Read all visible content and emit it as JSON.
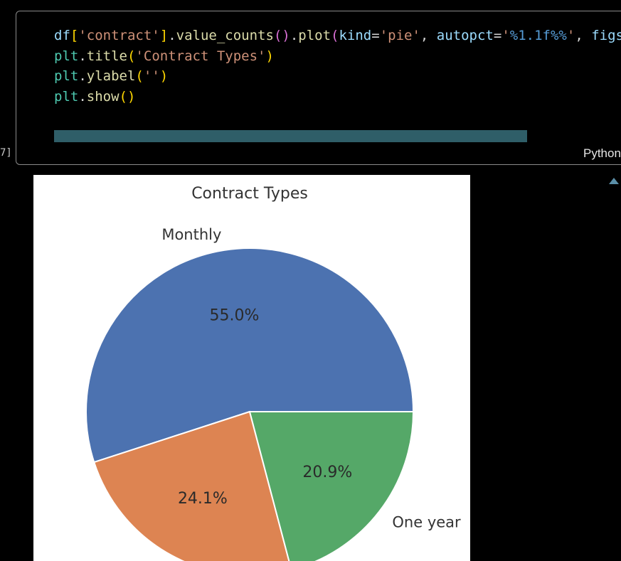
{
  "cell": {
    "code_lines": [
      [
        [
          "tok-var",
          "df"
        ],
        [
          "tok-br",
          "["
        ],
        [
          "tok-str",
          "'contract'"
        ],
        [
          "tok-br",
          "]"
        ],
        [
          "",
          "."
        ],
        [
          "tok-fn",
          "value_counts"
        ],
        [
          "tok-br2",
          "()"
        ],
        [
          "",
          "."
        ],
        [
          "tok-fn",
          "plot"
        ],
        [
          "tok-br2",
          "("
        ],
        [
          "tok-var",
          "kind"
        ],
        [
          "",
          "="
        ],
        [
          "tok-str",
          "'pie'"
        ],
        [
          "",
          ", "
        ],
        [
          "tok-var",
          "autopct"
        ],
        [
          "",
          "="
        ],
        [
          "tok-str",
          "'"
        ],
        [
          "tok-esc",
          "%1.1f%%"
        ],
        [
          "tok-str",
          "'"
        ],
        [
          "",
          ", "
        ],
        [
          "tok-var",
          "figsize"
        ]
      ],
      [
        [
          "tok-mod",
          "plt"
        ],
        [
          "",
          "."
        ],
        [
          "tok-fn",
          "title"
        ],
        [
          "tok-br",
          "("
        ],
        [
          "tok-str",
          "'Contract Types'"
        ],
        [
          "tok-br",
          ")"
        ]
      ],
      [
        [
          "tok-mod",
          "plt"
        ],
        [
          "",
          "."
        ],
        [
          "tok-fn",
          "ylabel"
        ],
        [
          "tok-br",
          "("
        ],
        [
          "tok-str",
          "''"
        ],
        [
          "tok-br",
          ")"
        ]
      ],
      [
        [
          "tok-mod",
          "plt"
        ],
        [
          "",
          "."
        ],
        [
          "tok-fn",
          "show"
        ],
        [
          "tok-br",
          "()"
        ]
      ]
    ],
    "exec_count": "7]",
    "language": "Python"
  },
  "chart_data": {
    "type": "pie",
    "title": "Contract Types",
    "labels": [
      "Monthly",
      "",
      "One year"
    ],
    "values": [
      55.0,
      24.1,
      20.9
    ],
    "pct_labels": [
      "55.0%",
      "24.1%",
      "20.9%"
    ],
    "colors": [
      "#4c72b0",
      "#dd8452",
      "#55a868"
    ],
    "start_angle_deg": 0,
    "direction": "counterclockwise"
  },
  "colors": {
    "background": "#000000",
    "cell_border": "#8a8a8a",
    "scrollbar": "#2f5e68"
  }
}
